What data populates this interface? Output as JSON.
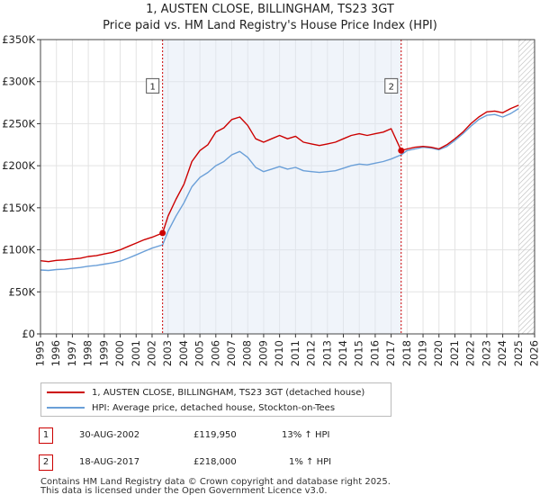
{
  "chart_data": {
    "type": "line",
    "title": "1, AUSTEN CLOSE, BILLINGHAM, TS23 3GT",
    "subtitle": "Price paid vs. HM Land Registry's House Price Index (HPI)",
    "xlim": [
      1995,
      2026
    ],
    "ylim": [
      0,
      350000
    ],
    "x_ticks": [
      1995,
      1996,
      1997,
      1998,
      1999,
      2000,
      2001,
      2002,
      2003,
      2004,
      2005,
      2006,
      2007,
      2008,
      2009,
      2010,
      2011,
      2012,
      2013,
      2014,
      2015,
      2016,
      2017,
      2018,
      2019,
      2020,
      2021,
      2022,
      2023,
      2024,
      2025,
      2026
    ],
    "y_ticks": [
      {
        "value": 0,
        "label": "£0"
      },
      {
        "value": 50000,
        "label": "£50K"
      },
      {
        "value": 100000,
        "label": "£100K"
      },
      {
        "value": 150000,
        "label": "£150K"
      },
      {
        "value": 200000,
        "label": "£200K"
      },
      {
        "value": 250000,
        "label": "£250K"
      },
      {
        "value": 300000,
        "label": "£300K"
      },
      {
        "value": 350000,
        "label": "£350K"
      }
    ],
    "grid": true,
    "shaded_spans": [
      [
        2002.66,
        2017.63
      ]
    ],
    "forecast_hatch_start": 2025.0,
    "series": [
      {
        "name": "1, AUSTEN CLOSE, BILLINGHAM, TS23 3GT (detached house)",
        "color": "#cc0000",
        "x": [
          1995.0,
          1995.5,
          1996.0,
          1996.5,
          1997.0,
          1997.5,
          1998.0,
          1998.5,
          1999.0,
          1999.5,
          2000.0,
          2000.5,
          2001.0,
          2001.5,
          2002.0,
          2002.66,
          2003.0,
          2003.5,
          2004.0,
          2004.5,
          2005.0,
          2005.5,
          2006.0,
          2006.5,
          2007.0,
          2007.5,
          2008.0,
          2008.5,
          2009.0,
          2009.5,
          2010.0,
          2010.5,
          2011.0,
          2011.5,
          2012.0,
          2012.5,
          2013.0,
          2013.5,
          2014.0,
          2014.5,
          2015.0,
          2015.5,
          2016.0,
          2016.5,
          2017.0,
          2017.63,
          2018.0,
          2018.5,
          2019.0,
          2019.5,
          2020.0,
          2020.5,
          2021.0,
          2021.5,
          2022.0,
          2022.5,
          2023.0,
          2023.5,
          2024.0,
          2024.5,
          2025.0
        ],
        "values": [
          87000,
          86000,
          87500,
          88000,
          89000,
          90000,
          92000,
          93000,
          95000,
          97000,
          100000,
          104000,
          108000,
          112000,
          115000,
          119950,
          140000,
          160000,
          178000,
          205000,
          218000,
          225000,
          240000,
          245000,
          255000,
          258000,
          248000,
          232000,
          228000,
          232000,
          236000,
          232000,
          235000,
          228000,
          226000,
          224000,
          226000,
          228000,
          232000,
          236000,
          238000,
          236000,
          238000,
          240000,
          244000,
          218000,
          220000,
          222000,
          223000,
          222000,
          220000,
          225000,
          232000,
          240000,
          250000,
          258000,
          264000,
          265000,
          263000,
          268000,
          272000
        ]
      },
      {
        "name": "HPI: Average price, detached house, Stockton-on-Tees",
        "color": "#6a9fd8",
        "x": [
          1995.0,
          1995.5,
          1996.0,
          1996.5,
          1997.0,
          1997.5,
          1998.0,
          1998.5,
          1999.0,
          1999.5,
          2000.0,
          2000.5,
          2001.0,
          2001.5,
          2002.0,
          2002.66,
          2003.0,
          2003.5,
          2004.0,
          2004.5,
          2005.0,
          2005.5,
          2006.0,
          2006.5,
          2007.0,
          2007.5,
          2008.0,
          2008.5,
          2009.0,
          2009.5,
          2010.0,
          2010.5,
          2011.0,
          2011.5,
          2012.0,
          2012.5,
          2013.0,
          2013.5,
          2014.0,
          2014.5,
          2015.0,
          2015.5,
          2016.0,
          2016.5,
          2017.0,
          2017.63,
          2018.0,
          2018.5,
          2019.0,
          2019.5,
          2020.0,
          2020.5,
          2021.0,
          2021.5,
          2022.0,
          2022.5,
          2023.0,
          2023.5,
          2024.0,
          2024.5,
          2025.0
        ],
        "values": [
          76000,
          75500,
          76500,
          77000,
          78000,
          79000,
          80500,
          81500,
          83000,
          84500,
          86500,
          90000,
          94000,
          98000,
          102000,
          106000,
          122000,
          140000,
          156000,
          175000,
          186000,
          192000,
          200000,
          205000,
          213000,
          217000,
          210000,
          198000,
          193000,
          196000,
          199000,
          196000,
          198000,
          194000,
          193000,
          192000,
          193000,
          194000,
          197000,
          200000,
          202000,
          201000,
          203000,
          205000,
          208000,
          213000,
          218000,
          220000,
          222000,
          221000,
          219000,
          223000,
          230000,
          238000,
          247000,
          255000,
          260000,
          261000,
          258000,
          262000,
          268000
        ]
      }
    ],
    "transactions": [
      {
        "id": "1",
        "date": "30-AUG-2002",
        "x": 2002.66,
        "price": "£119,950",
        "value": 119950,
        "hpi": "13% ↑ HPI"
      },
      {
        "id": "2",
        "date": "18-AUG-2017",
        "x": 2017.63,
        "price": "£218,000",
        "value": 218000,
        "hpi": "1% ↑ HPI"
      }
    ],
    "marker_label_value": 295000
  },
  "footer": {
    "line1": "Contains HM Land Registry data © Crown copyright and database right 2025.",
    "line2": "This data is licensed under the Open Government Licence v3.0."
  }
}
